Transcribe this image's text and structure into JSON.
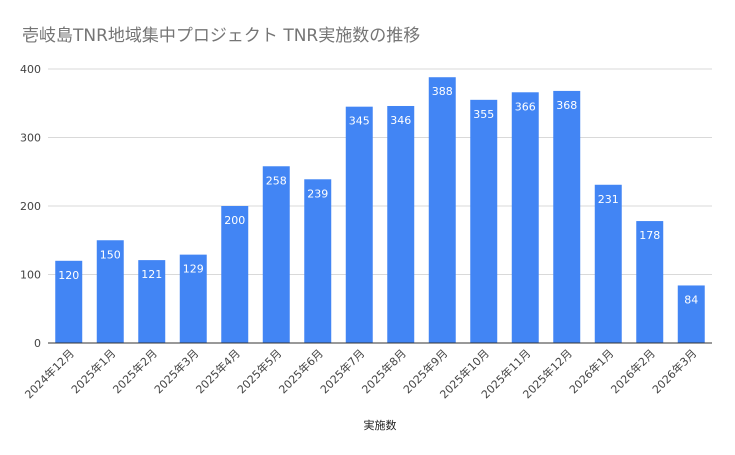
{
  "chart_data": {
    "type": "bar",
    "title": "壱岐島TNR地域集中プロジェクト TNR実施数の推移",
    "xlabel": "実施数",
    "ylabel": "",
    "ylim": [
      0,
      400
    ],
    "yticks": [
      0,
      100,
      200,
      300,
      400
    ],
    "grid": true,
    "categories": [
      "2024年12月",
      "2025年1月",
      "2025年2月",
      "2025年3月",
      "2025年4月",
      "2025年5月",
      "2025年6月",
      "2025年7月",
      "2025年8月",
      "2025年9月",
      "2025年10月",
      "2025年11月",
      "2025年12月",
      "2026年1月",
      "2026年2月",
      "2026年3月"
    ],
    "series": [
      {
        "values": [
          120,
          150,
          121,
          129,
          200,
          258,
          239,
          345,
          346,
          388,
          355,
          366,
          368,
          231,
          178,
          84
        ]
      }
    ],
    "bar_color": "#4285f4",
    "grid_color": "#d9d9d9",
    "axis_color": "#333333"
  }
}
